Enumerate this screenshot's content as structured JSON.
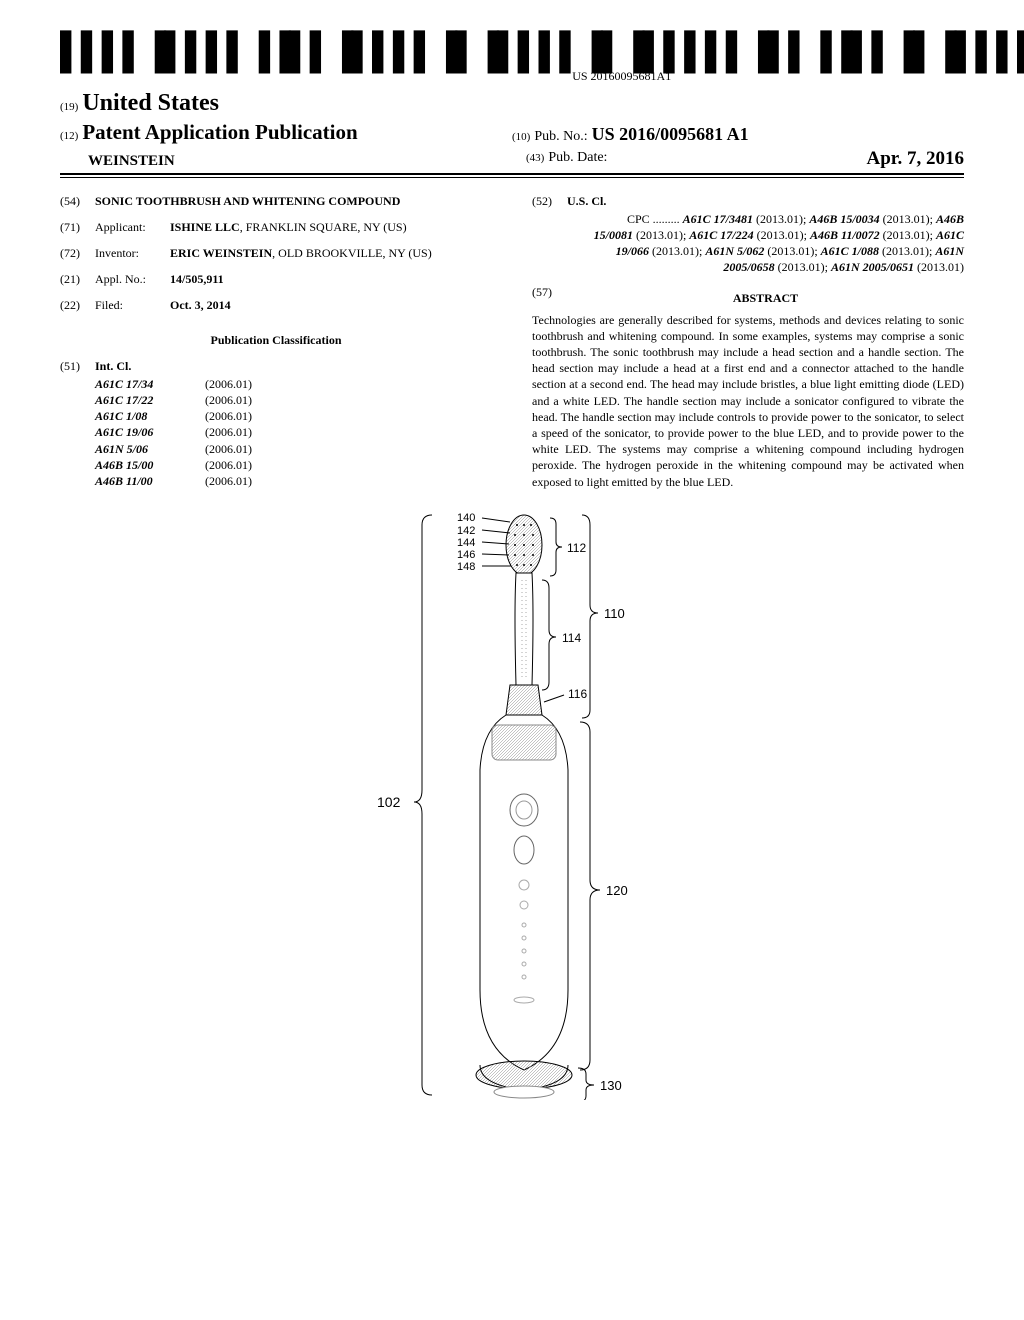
{
  "barcode_text": "US 20160095681A1",
  "header": {
    "field19_num": "(19)",
    "country": "United States",
    "field12_num": "(12)",
    "pub_type": "Patent Application Publication",
    "authors": "WEINSTEIN",
    "field10_num": "(10)",
    "pub_no_label": "Pub. No.:",
    "pub_no": "US 2016/0095681 A1",
    "field43_num": "(43)",
    "pub_date_label": "Pub. Date:",
    "pub_date": "Apr. 7, 2016"
  },
  "left_col": {
    "field54": {
      "num": "(54)",
      "label": "",
      "title": "SONIC TOOTHBRUSH AND WHITENING COMPOUND"
    },
    "field71": {
      "num": "(71)",
      "label": "Applicant:",
      "val_bold": "ISHINE LLC",
      "val_rest": ", FRANKLIN SQUARE, NY (US)"
    },
    "field72": {
      "num": "(72)",
      "label": "Inventor:",
      "val_bold": "ERIC WEINSTEIN",
      "val_rest": ", OLD BROOKVILLE, NY (US)"
    },
    "field21": {
      "num": "(21)",
      "label": "Appl. No.:",
      "val": "14/505,911"
    },
    "field22": {
      "num": "(22)",
      "label": "Filed:",
      "val": "Oct. 3, 2014"
    },
    "pub_class_header": "Publication Classification",
    "field51": {
      "num": "(51)",
      "label": "Int. Cl."
    },
    "int_cl": [
      {
        "code": "A61C 17/34",
        "year": "(2006.01)"
      },
      {
        "code": "A61C 17/22",
        "year": "(2006.01)"
      },
      {
        "code": "A61C 1/08",
        "year": "(2006.01)"
      },
      {
        "code": "A61C 19/06",
        "year": "(2006.01)"
      },
      {
        "code": "A61N 5/06",
        "year": "(2006.01)"
      },
      {
        "code": "A46B 15/00",
        "year": "(2006.01)"
      },
      {
        "code": "A46B 11/00",
        "year": "(2006.01)"
      }
    ]
  },
  "right_col": {
    "field52": {
      "num": "(52)",
      "label": "U.S. Cl."
    },
    "cpc_prefix": "CPC .........",
    "cpc": [
      {
        "code": "A61C 17/3481",
        "year": "(2013.01)"
      },
      {
        "code": "A46B 15/0034",
        "year": "(2013.01)"
      },
      {
        "code": "A46B 15/0081",
        "year": "(2013.01)"
      },
      {
        "code": "A61C 17/224",
        "year": "(2013.01)"
      },
      {
        "code": "A46B 11/0072",
        "year": "(2013.01)"
      },
      {
        "code": "A61C 19/066",
        "year": "(2013.01)"
      },
      {
        "code": "A61N 5/062",
        "year": "(2013.01)"
      },
      {
        "code": "A61C 1/088",
        "year": "(2013.01)"
      },
      {
        "code": "A61N 2005/0658",
        "year": "(2013.01)"
      },
      {
        "code": "A61N 2005/0651",
        "year": "(2013.01)"
      }
    ],
    "field57": {
      "num": "(57)",
      "label": "ABSTRACT"
    },
    "abstract": "Technologies are generally described for systems, methods and devices relating to sonic toothbrush and whitening compound. In some examples, systems may comprise a sonic toothbrush. The sonic toothbrush may include a head section and a handle section. The head section may include a head at a first end and a connector attached to the handle section at a second end. The head may include bristles, a blue light emitting diode (LED) and a white LED. The handle section may include a sonicator configured to vibrate the head. The handle section may include controls to provide power to the sonicator, to select a speed of the sonicator, to provide power to the blue LED, and to provide power to the white LED. The systems may comprise a whitening compound including hydrogen peroxide. The hydrogen peroxide in the whitening compound may be activated when exposed to light emitted by the blue LED."
  },
  "figure": {
    "ref_102": "102",
    "ref_110": "110",
    "ref_112": "112",
    "ref_114": "114",
    "ref_116": "116",
    "ref_120": "120",
    "ref_130": "130",
    "ref_140": "140",
    "ref_142": "142",
    "ref_144": "144",
    "ref_146": "146",
    "ref_148": "148"
  }
}
